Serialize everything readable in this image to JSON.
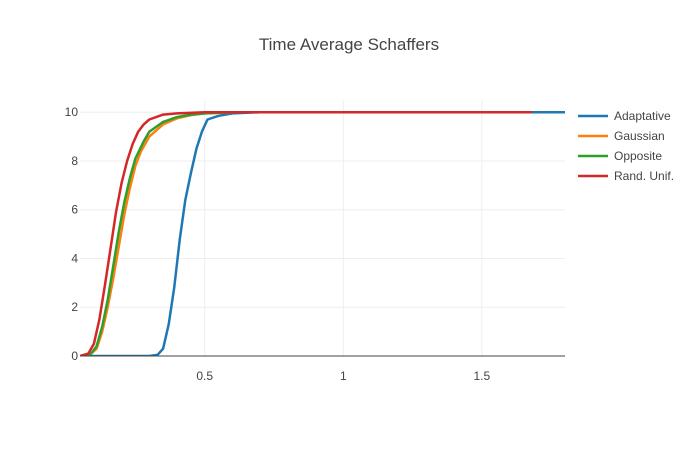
{
  "chart_data": {
    "type": "line",
    "title": "Time Average Schaffers",
    "xlabel": "",
    "ylabel": "",
    "xlim": [
      0.05,
      1.8
    ],
    "ylim": [
      0,
      10.5
    ],
    "xticks": [
      0.5,
      1,
      1.5
    ],
    "xtick_labels": [
      "0.5",
      "1",
      "1.5"
    ],
    "yticks": [
      0,
      2,
      4,
      6,
      8,
      10
    ],
    "ytick_labels": [
      "0",
      "2",
      "4",
      "6",
      "8",
      "10"
    ],
    "grid": true,
    "legend": "right",
    "series": [
      {
        "name": "Adaptative",
        "color": "#1f77b4",
        "x": [
          0.05,
          0.3,
          0.33,
          0.35,
          0.37,
          0.39,
          0.4,
          0.41,
          0.43,
          0.45,
          0.47,
          0.49,
          0.51,
          0.55,
          0.6,
          0.7,
          1.0,
          1.8
        ],
        "y": [
          0,
          0,
          0.05,
          0.3,
          1.3,
          2.8,
          3.8,
          4.8,
          6.4,
          7.5,
          8.5,
          9.2,
          9.7,
          9.85,
          9.95,
          10,
          10,
          10
        ]
      },
      {
        "name": "Gaussian",
        "color": "#ff7f0e",
        "x": [
          0.05,
          0.09,
          0.11,
          0.13,
          0.15,
          0.17,
          0.19,
          0.21,
          0.23,
          0.25,
          0.27,
          0.3,
          0.35,
          0.4,
          0.45,
          0.5,
          0.6,
          1.68
        ],
        "y": [
          0,
          0.1,
          0.3,
          1.0,
          2.0,
          3.2,
          4.5,
          5.8,
          6.9,
          7.8,
          8.4,
          9.0,
          9.5,
          9.75,
          9.88,
          9.95,
          10,
          10
        ]
      },
      {
        "name": "Opposite",
        "color": "#2ca02c",
        "x": [
          0.05,
          0.09,
          0.11,
          0.13,
          0.15,
          0.17,
          0.19,
          0.21,
          0.23,
          0.25,
          0.28,
          0.3,
          0.35,
          0.4,
          0.45,
          0.5,
          0.6,
          1.68
        ],
        "y": [
          0,
          0.1,
          0.4,
          1.2,
          2.3,
          3.7,
          5.1,
          6.3,
          7.3,
          8.1,
          8.8,
          9.2,
          9.6,
          9.8,
          9.9,
          9.95,
          10,
          10
        ]
      },
      {
        "name": "Rand. Unif.",
        "color": "#d62728",
        "x": [
          0.05,
          0.08,
          0.1,
          0.12,
          0.14,
          0.16,
          0.18,
          0.2,
          0.22,
          0.24,
          0.26,
          0.28,
          0.3,
          0.35,
          0.4,
          0.5,
          0.6,
          1.68
        ],
        "y": [
          0,
          0.1,
          0.5,
          1.5,
          2.9,
          4.4,
          5.9,
          7.1,
          8.0,
          8.7,
          9.2,
          9.5,
          9.7,
          9.9,
          9.95,
          10,
          10,
          10
        ]
      }
    ]
  }
}
